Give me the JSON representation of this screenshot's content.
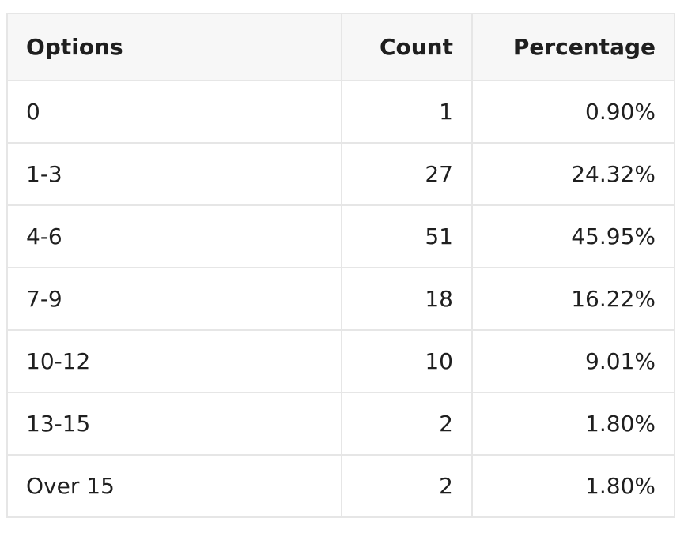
{
  "chart_data": {
    "type": "table",
    "columns": [
      "Options",
      "Count",
      "Percentage"
    ],
    "rows": [
      {
        "option": "0",
        "count": "1",
        "percentage": "0.90%"
      },
      {
        "option": "1-3",
        "count": "27",
        "percentage": "24.32%"
      },
      {
        "option": "4-6",
        "count": "51",
        "percentage": "45.95%"
      },
      {
        "option": "7-9",
        "count": "18",
        "percentage": "16.22%"
      },
      {
        "option": "10-12",
        "count": "10",
        "percentage": "9.01%"
      },
      {
        "option": "13-15",
        "count": "2",
        "percentage": "1.80%"
      },
      {
        "option": "Over 15",
        "count": "2",
        "percentage": "1.80%"
      }
    ]
  }
}
